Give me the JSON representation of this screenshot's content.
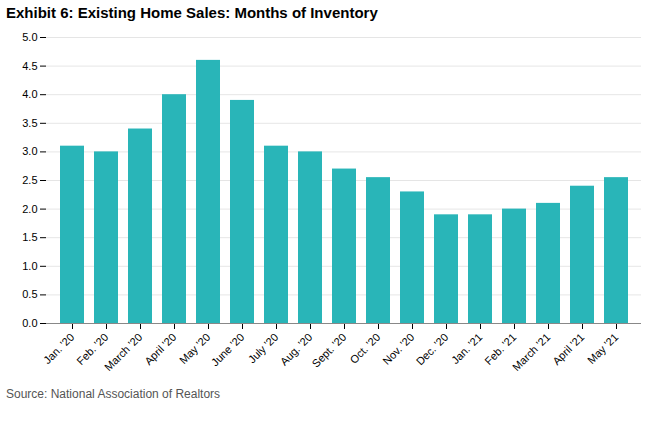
{
  "chart_data": {
    "type": "bar",
    "title": "Exhibit 6: Existing Home Sales: Months of Inventory",
    "categories": [
      "Jan. '20",
      "Feb. '20",
      "March '20",
      "April '20",
      "May '20",
      "June '20",
      "July '20",
      "Aug. '20",
      "Sept. '20",
      "Oct. '20",
      "Nov. '20",
      "Dec. '20",
      "Jan. '21",
      "Feb. '21",
      "March '21",
      "April '21",
      "May '21"
    ],
    "values": [
      3.1,
      3.0,
      3.4,
      4.0,
      4.6,
      3.9,
      3.1,
      3.0,
      2.7,
      2.55,
      2.3,
      1.9,
      1.9,
      2.0,
      2.1,
      2.4,
      2.55
    ],
    "color": "#29B5B8",
    "ylim": [
      0,
      5.0
    ],
    "yticks": [
      {
        "value": 0,
        "label": "0.0"
      },
      0.5,
      {
        "value": 1,
        "label": "1.0"
      },
      1.5,
      {
        "value": 2,
        "label": "2.0"
      },
      2.5,
      {
        "value": 3,
        "label": "3.0"
      },
      3.5,
      {
        "value": 4,
        "label": "4.0"
      },
      4.5,
      {
        "value": 5,
        "label": "5.0"
      }
    ],
    "grid": true,
    "caption": "Source: National Association of Realtors"
  }
}
